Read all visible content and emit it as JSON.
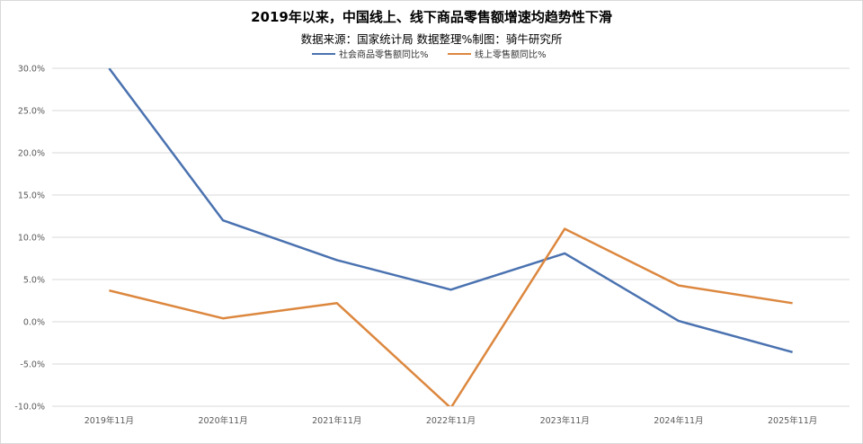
{
  "chart_data": {
    "type": "line",
    "title": "2019年以来，中国线上、线下商品零售额增速均趋势性下滑",
    "subtitle": "数据来源：国家统计局    数据整理%制图：骑牛研究所",
    "xlabel": "",
    "ylabel": "",
    "categories": [
      "2019年11月",
      "2020年11月",
      "2021年11月",
      "2022年11月",
      "2023年11月",
      "2024年11月",
      "2025年11月"
    ],
    "ylim": [
      -10,
      30
    ],
    "yticks": [
      30,
      25,
      20,
      15,
      10,
      5,
      0,
      -5,
      -10
    ],
    "ytick_labels": [
      "30.0%",
      "25.0%",
      "20.0%",
      "15.0%",
      "10.0%",
      "5.0%",
      "0.0%",
      "-5.0%",
      "-10.0%"
    ],
    "grid": true,
    "legend_position": "top",
    "series": [
      {
        "name": "社会商品零售额同比%",
        "color": "#4a72b0",
        "values": [
          30.0,
          12.0,
          7.3,
          3.8,
          8.1,
          0.1,
          -3.6
        ]
      },
      {
        "name": "线上零售额同比%",
        "color": "#dc873e",
        "values": [
          3.7,
          0.4,
          2.2,
          -10.2,
          11.0,
          4.3,
          2.2
        ]
      }
    ]
  }
}
